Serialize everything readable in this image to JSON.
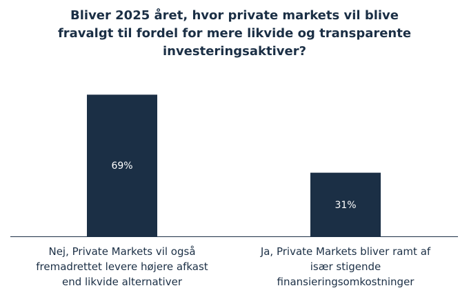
{
  "chart_data": {
    "type": "bar",
    "title_lines": [
      "Bliver 2025 året, hvor private markets vil blive",
      "fravalgt til fordel for mere likvide og transparente",
      "investeringsaktiver?"
    ],
    "categories": [
      [
        "Nej, Private Markets vil også",
        "fremadrettet levere højere afkast",
        "end likvide alternativer"
      ],
      [
        "Ja, Private Markets bliver ramt af",
        "især stigende",
        "finansieringsomkostninger"
      ]
    ],
    "values": [
      69,
      31
    ],
    "data_labels": [
      "69%",
      "31%"
    ],
    "ylim": [
      0,
      100
    ],
    "grid": false,
    "bar_color": "#1b2f45",
    "label_color": "#ffffff",
    "axis_color": "#1b2f45"
  }
}
